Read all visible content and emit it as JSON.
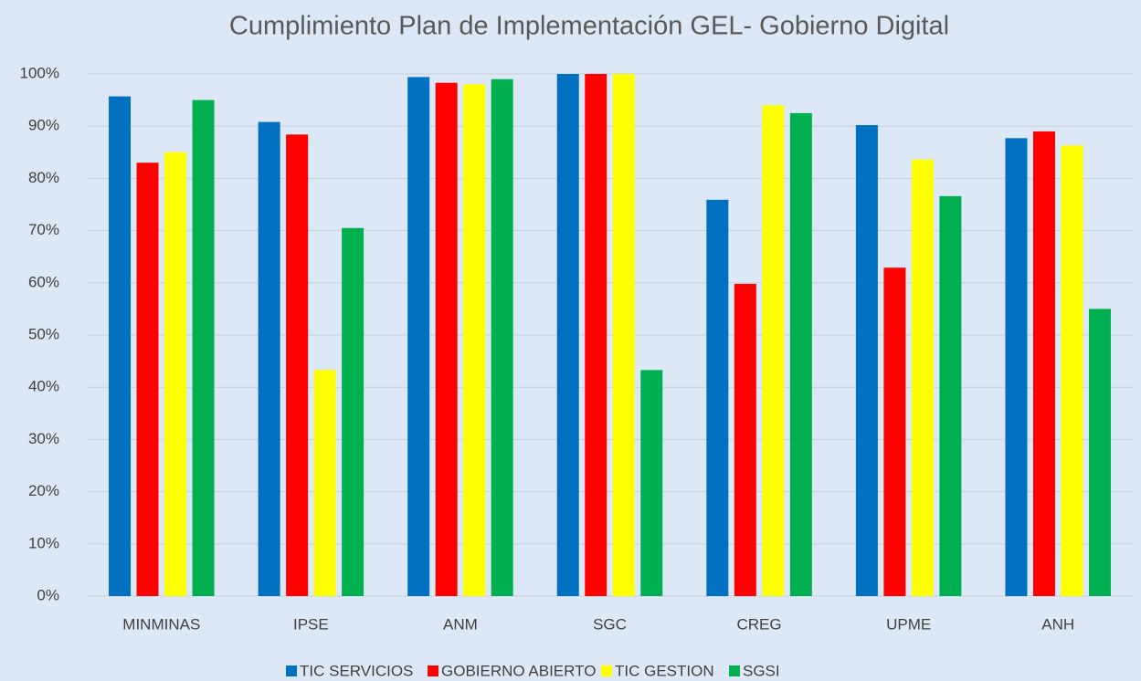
{
  "chart_data": {
    "type": "bar",
    "title": "Cumplimiento Plan de Implementación GEL- Gobierno Digital",
    "categories": [
      "MINMINAS",
      "IPSE",
      "ANM",
      "SGC",
      "CREG",
      "UPME",
      "ANH"
    ],
    "series": [
      {
        "name": "TIC SERVICIOS",
        "color": "#0070c0",
        "values": [
          95.7,
          90.8,
          99.4,
          100,
          75.9,
          90.2,
          87.7
        ]
      },
      {
        "name": "GOBIERNO ABIERTO",
        "color": "#ff0000",
        "values": [
          83,
          88.4,
          98.3,
          100,
          59.8,
          62.9,
          89
        ]
      },
      {
        "name": "TIC GESTION",
        "color": "#ffff00",
        "values": [
          85,
          43.3,
          98,
          100,
          94,
          83.6,
          86.3
        ]
      },
      {
        "name": "SGSI",
        "color": "#00b050",
        "values": [
          95,
          70.5,
          99,
          43.3,
          92.5,
          76.6,
          55
        ]
      }
    ],
    "ylim": [
      0,
      100
    ],
    "yticks": [
      {
        "value": 0,
        "label": "0%"
      },
      {
        "value": 10,
        "label": "10%"
      },
      {
        "value": 20,
        "label": "20%"
      },
      {
        "value": 30,
        "label": "30%"
      },
      {
        "value": 40,
        "label": "40%"
      },
      {
        "value": 50,
        "label": "50%"
      },
      {
        "value": 60,
        "label": "60%"
      },
      {
        "value": 70,
        "label": "70%"
      },
      {
        "value": 80,
        "label": "80%"
      },
      {
        "value": 90,
        "label": "90%"
      },
      {
        "value": 100,
        "label": "100%"
      }
    ],
    "grid": true,
    "legend": "bottom"
  }
}
